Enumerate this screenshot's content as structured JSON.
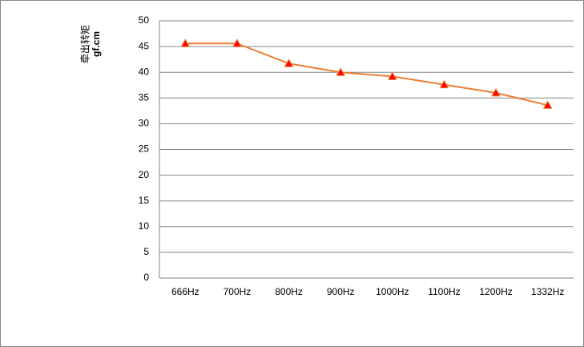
{
  "chart_data": {
    "type": "line",
    "ylabel": "牵出转矩",
    "yunit": "gf.cm",
    "categories": [
      "666Hz",
      "700Hz",
      "800Hz",
      "900Hz",
      "1000Hz",
      "1100Hz",
      "1200Hz",
      "1332Hz"
    ],
    "series": [
      {
        "color": "#ED7D31",
        "marker_color": "#FF0000",
        "values": [
          45.6,
          45.6,
          41.7,
          40.0,
          39.2,
          37.6,
          36.0,
          33.6
        ]
      }
    ],
    "ylim": [
      0,
      50
    ],
    "yticks": [
      0,
      5,
      10,
      15,
      20,
      25,
      30,
      35,
      40,
      45,
      50
    ],
    "grid": true
  }
}
